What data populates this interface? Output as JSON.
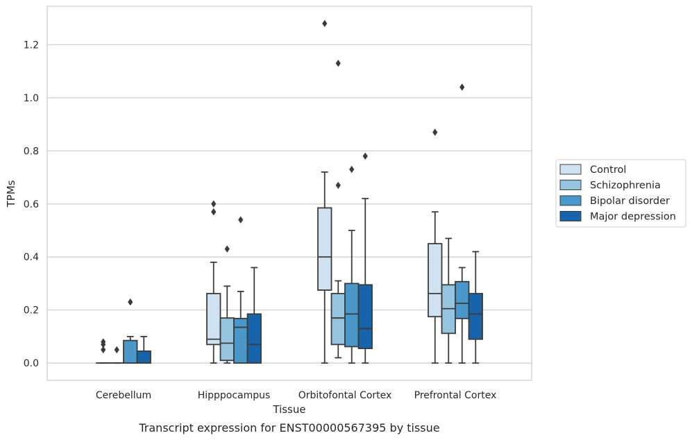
{
  "chart_data": {
    "type": "box",
    "title": "",
    "caption": "Transcript expression for ENST00000567395 by tissue",
    "xlabel": "Tissue",
    "ylabel": "TPMs",
    "ylim": [
      -0.065,
      1.345
    ],
    "yticks": [
      0.0,
      0.2,
      0.4,
      0.6,
      0.8,
      1.0,
      1.2
    ],
    "ytick_labels": [
      "0.0",
      "0.2",
      "0.4",
      "0.6",
      "0.8",
      "1.0",
      "1.2"
    ],
    "grid": "horizontal",
    "legend_position": "right",
    "categories": [
      "Cerebellum",
      "Hipppocampus",
      "Orbitofontal Cortex",
      "Prefrontal Cortex"
    ],
    "series": [
      {
        "name": "Control",
        "color": "#d0e1f2",
        "boxes": [
          {
            "q1": 0.0,
            "median": 0.0,
            "q3": 0.0,
            "whisker_low": 0.0,
            "whisker_high": 0.0,
            "outliers": [
              0.05,
              0.07,
              0.08
            ]
          },
          {
            "q1": 0.07,
            "median": 0.09,
            "q3": 0.262,
            "whisker_low": 0.0,
            "whisker_high": 0.38,
            "outliers": [
              0.57,
              0.6
            ]
          },
          {
            "q1": 0.275,
            "median": 0.4,
            "q3": 0.585,
            "whisker_low": 0.0,
            "whisker_high": 0.72,
            "outliers": [
              1.28
            ]
          },
          {
            "q1": 0.175,
            "median": 0.262,
            "q3": 0.45,
            "whisker_low": 0.0,
            "whisker_high": 0.57,
            "outliers": [
              0.87
            ]
          }
        ]
      },
      {
        "name": "Schizophrenia",
        "color": "#94c4df",
        "boxes": [
          {
            "q1": 0.0,
            "median": 0.0,
            "q3": 0.0,
            "whisker_low": 0.0,
            "whisker_high": 0.0,
            "outliers": [
              0.05
            ]
          },
          {
            "q1": 0.01,
            "median": 0.075,
            "q3": 0.17,
            "whisker_low": 0.0,
            "whisker_high": 0.29,
            "outliers": [
              0.43
            ]
          },
          {
            "q1": 0.07,
            "median": 0.17,
            "q3": 0.262,
            "whisker_low": 0.02,
            "whisker_high": 0.31,
            "outliers": [
              0.67,
              1.13
            ]
          },
          {
            "q1": 0.112,
            "median": 0.205,
            "q3": 0.295,
            "whisker_low": 0.0,
            "whisker_high": 0.47,
            "outliers": []
          }
        ]
      },
      {
        "name": "Bipolar disorder",
        "color": "#4a98c9",
        "boxes": [
          {
            "q1": 0.0,
            "median": 0.0,
            "q3": 0.085,
            "whisker_low": 0.0,
            "whisker_high": 0.1,
            "outliers": [
              0.23
            ]
          },
          {
            "q1": 0.0,
            "median": 0.135,
            "q3": 0.168,
            "whisker_low": 0.0,
            "whisker_high": 0.27,
            "outliers": [
              0.54
            ]
          },
          {
            "q1": 0.062,
            "median": 0.185,
            "q3": 0.3,
            "whisker_low": 0.0,
            "whisker_high": 0.5,
            "outliers": [
              0.73
            ]
          },
          {
            "q1": 0.168,
            "median": 0.225,
            "q3": 0.307,
            "whisker_low": 0.0,
            "whisker_high": 0.36,
            "outliers": [
              1.04
            ]
          }
        ]
      },
      {
        "name": "Major depression",
        "color": "#1764ab",
        "boxes": [
          {
            "q1": 0.0,
            "median": 0.0,
            "q3": 0.045,
            "whisker_low": 0.0,
            "whisker_high": 0.1,
            "outliers": []
          },
          {
            "q1": 0.0,
            "median": 0.07,
            "q3": 0.185,
            "whisker_low": 0.0,
            "whisker_high": 0.36,
            "outliers": []
          },
          {
            "q1": 0.055,
            "median": 0.13,
            "q3": 0.295,
            "whisker_low": 0.0,
            "whisker_high": 0.62,
            "outliers": [
              0.78
            ]
          },
          {
            "q1": 0.09,
            "median": 0.185,
            "q3": 0.262,
            "whisker_low": 0.0,
            "whisker_high": 0.42,
            "outliers": []
          }
        ]
      }
    ]
  }
}
